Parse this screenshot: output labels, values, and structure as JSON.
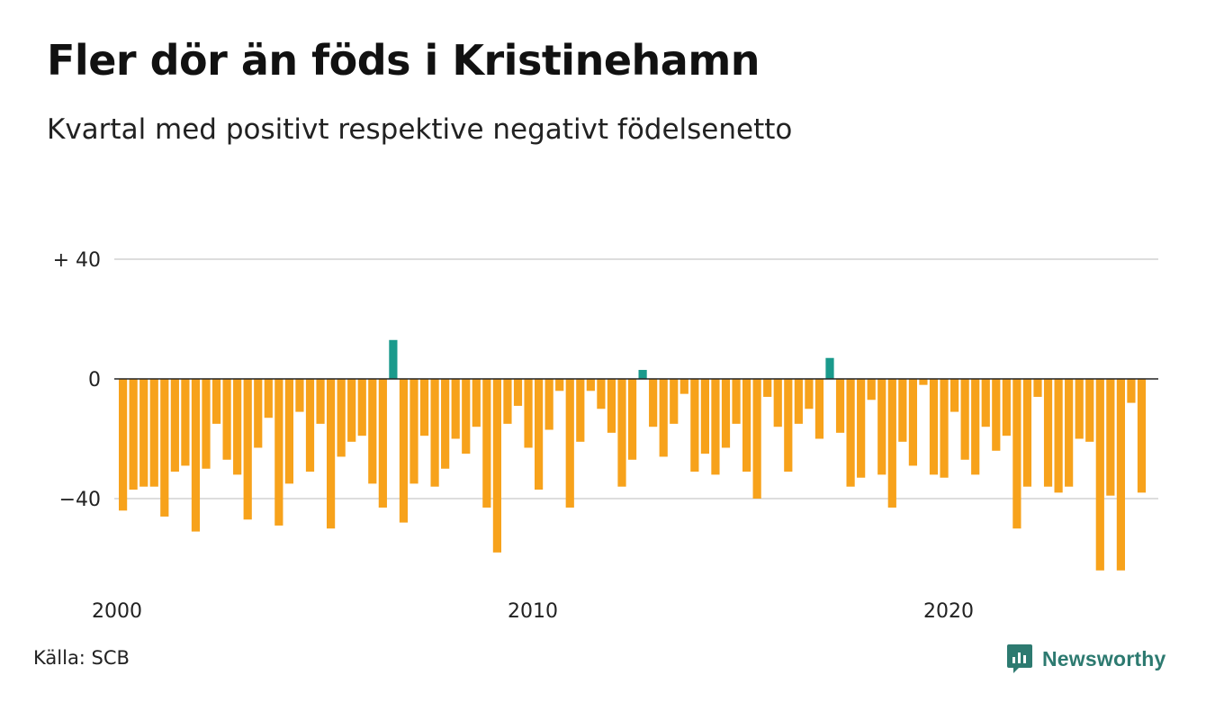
{
  "title": "Fler dör än föds i Kristinehamn",
  "subtitle": "Kvartal med positivt respektive negativt födelsenetto",
  "source": "Källa: SCB",
  "brand": {
    "name": "Newsworthy",
    "icon": "newsworthy-logo-icon"
  },
  "colors": {
    "positive": "#1a9a8c",
    "negative": "#f7a21b",
    "zero_line": "#222222",
    "grid": "#dddddd",
    "brand": "#2d7a70"
  },
  "chart_data": {
    "type": "bar",
    "x_start": "2000 Q1",
    "x_step": "quarter",
    "x_ticks": [
      "2000",
      "2010",
      "2020"
    ],
    "y_ticks": [
      "+ 40",
      "0",
      "−40"
    ],
    "y_tick_values": [
      40,
      0,
      -40
    ],
    "ylim": [
      -68,
      40
    ],
    "grid": true,
    "values": [
      -44,
      -37,
      -36,
      -36,
      -46,
      -31,
      -29,
      -51,
      -30,
      -15,
      -27,
      -32,
      -47,
      -23,
      -13,
      -49,
      -35,
      -11,
      -31,
      -15,
      -50,
      -26,
      -21,
      -19,
      -35,
      -43,
      13,
      -48,
      -35,
      -19,
      -36,
      -30,
      -20,
      -25,
      -16,
      -43,
      -58,
      -15,
      -9,
      -23,
      -37,
      -17,
      -4,
      -43,
      -21,
      -4,
      -10,
      -18,
      -36,
      -27,
      3,
      -16,
      -26,
      -15,
      -5,
      -31,
      -25,
      -32,
      -23,
      -15,
      -31,
      -40,
      -6,
      -16,
      -31,
      -15,
      -10,
      -20,
      7,
      -18,
      -36,
      -33,
      -7,
      -32,
      -43,
      -21,
      -29,
      -2,
      -32,
      -33,
      -11,
      -27,
      -32,
      -16,
      -24,
      -19,
      -50,
      -36,
      -6,
      -36,
      -38,
      -36,
      -20,
      -21,
      -64,
      -39,
      -64,
      -8,
      -38
    ]
  }
}
